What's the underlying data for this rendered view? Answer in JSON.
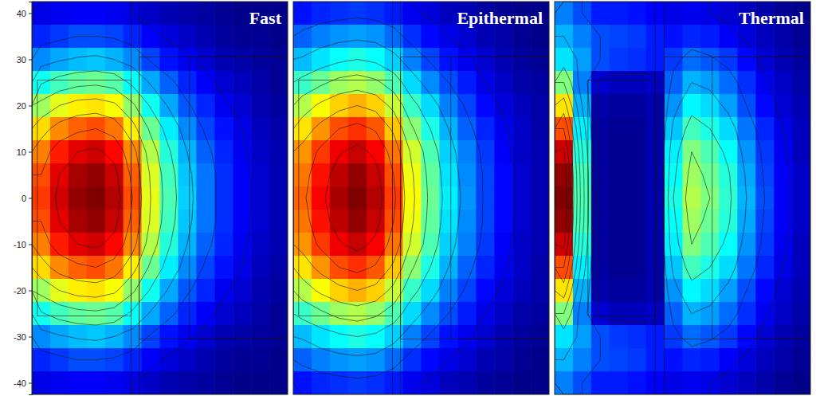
{
  "chart_data": [
    {
      "type": "heatmap",
      "title": "Fast",
      "color": "jet",
      "color_range": [
        0,
        1
      ],
      "x": [
        2,
        6,
        10,
        14,
        18,
        22,
        26,
        30,
        34,
        38,
        42,
        46,
        50,
        54
      ],
      "y": [
        40,
        35,
        30,
        25,
        20,
        15,
        10,
        5,
        0,
        -5,
        -10,
        -15,
        -20,
        -25,
        -30,
        -35,
        -40
      ],
      "xlim": [
        0,
        56
      ],
      "ylim": [
        -42.5,
        42.5
      ],
      "yticks": [
        40,
        30,
        20,
        10,
        0,
        -10,
        -20,
        -30,
        -40
      ],
      "tick_labels": "y",
      "contour_levels": [
        0.1,
        0.2,
        0.3,
        0.4,
        0.5,
        0.6,
        0.7,
        0.8,
        0.9
      ],
      "regions": [
        [
          1.2,
          21.7,
          -25.5,
          25.5
        ],
        [
          21.7,
          23.5,
          -42.5,
          42.5
        ],
        [
          23.5,
          56,
          -30.5,
          30.5
        ],
        [
          34.5,
          56,
          -30.5,
          30.5
        ]
      ],
      "values": [
        [
          0.1,
          0.11,
          0.12,
          0.12,
          0.11,
          0.1,
          0.07,
          0.05,
          0.04,
          0.03,
          0.02,
          0.01,
          0.01,
          0.01
        ],
        [
          0.16,
          0.18,
          0.2,
          0.2,
          0.19,
          0.16,
          0.12,
          0.09,
          0.07,
          0.05,
          0.03,
          0.02,
          0.02,
          0.01
        ],
        [
          0.26,
          0.29,
          0.31,
          0.32,
          0.3,
          0.26,
          0.19,
          0.14,
          0.11,
          0.08,
          0.05,
          0.04,
          0.03,
          0.02
        ],
        [
          0.39,
          0.44,
          0.47,
          0.48,
          0.46,
          0.38,
          0.29,
          0.22,
          0.16,
          0.12,
          0.08,
          0.06,
          0.04,
          0.02
        ],
        [
          0.53,
          0.6,
          0.64,
          0.65,
          0.62,
          0.52,
          0.39,
          0.29,
          0.21,
          0.16,
          0.11,
          0.08,
          0.05,
          0.03
        ],
        [
          0.66,
          0.74,
          0.78,
          0.8,
          0.76,
          0.64,
          0.48,
          0.36,
          0.26,
          0.19,
          0.14,
          0.1,
          0.06,
          0.04
        ],
        [
          0.75,
          0.85,
          0.9,
          0.92,
          0.87,
          0.74,
          0.55,
          0.41,
          0.3,
          0.22,
          0.16,
          0.11,
          0.07,
          0.05
        ],
        [
          0.8,
          0.9,
          0.96,
          0.98,
          0.93,
          0.78,
          0.59,
          0.44,
          0.32,
          0.24,
          0.17,
          0.12,
          0.08,
          0.05
        ],
        [
          0.82,
          0.92,
          0.98,
          1.0,
          0.95,
          0.8,
          0.6,
          0.45,
          0.33,
          0.24,
          0.17,
          0.12,
          0.08,
          0.05
        ],
        [
          0.8,
          0.9,
          0.96,
          0.98,
          0.93,
          0.78,
          0.59,
          0.44,
          0.32,
          0.24,
          0.17,
          0.12,
          0.08,
          0.05
        ],
        [
          0.75,
          0.85,
          0.9,
          0.92,
          0.87,
          0.74,
          0.55,
          0.41,
          0.3,
          0.22,
          0.16,
          0.11,
          0.07,
          0.05
        ],
        [
          0.66,
          0.74,
          0.78,
          0.8,
          0.76,
          0.64,
          0.48,
          0.36,
          0.26,
          0.19,
          0.14,
          0.1,
          0.06,
          0.04
        ],
        [
          0.53,
          0.6,
          0.64,
          0.65,
          0.62,
          0.52,
          0.39,
          0.29,
          0.21,
          0.16,
          0.11,
          0.08,
          0.05,
          0.03
        ],
        [
          0.39,
          0.44,
          0.47,
          0.48,
          0.46,
          0.38,
          0.29,
          0.22,
          0.16,
          0.12,
          0.08,
          0.06,
          0.04,
          0.02
        ],
        [
          0.26,
          0.29,
          0.31,
          0.32,
          0.3,
          0.26,
          0.19,
          0.14,
          0.11,
          0.08,
          0.05,
          0.04,
          0.03,
          0.02
        ],
        [
          0.16,
          0.18,
          0.2,
          0.2,
          0.19,
          0.16,
          0.12,
          0.09,
          0.07,
          0.05,
          0.03,
          0.02,
          0.02,
          0.01
        ],
        [
          0.1,
          0.11,
          0.12,
          0.12,
          0.11,
          0.1,
          0.07,
          0.05,
          0.04,
          0.03,
          0.02,
          0.01,
          0.01,
          0.01
        ]
      ]
    },
    {
      "type": "heatmap",
      "title": "Epithermal",
      "color": "jet",
      "color_range": [
        0,
        1
      ],
      "x": [
        2,
        6,
        10,
        14,
        18,
        22,
        26,
        30,
        34,
        38,
        42,
        46,
        50,
        54
      ],
      "y": [
        40,
        35,
        30,
        25,
        20,
        15,
        10,
        5,
        0,
        -5,
        -10,
        -15,
        -20,
        -25,
        -30,
        -35,
        -40
      ],
      "xlim": [
        0,
        56
      ],
      "ylim": [
        -42.5,
        42.5
      ],
      "tick_labels": false,
      "contour_levels": [
        0.1,
        0.2,
        0.3,
        0.4,
        0.5,
        0.6,
        0.7,
        0.8,
        0.9
      ],
      "regions": [
        [
          1.2,
          21.7,
          -25.5,
          25.5
        ],
        [
          21.7,
          23.5,
          -42.5,
          42.5
        ],
        [
          23.5,
          56,
          -30.5,
          30.5
        ],
        [
          34.5,
          56,
          -30.5,
          30.5
        ]
      ],
      "values": [
        [
          0.14,
          0.16,
          0.17,
          0.18,
          0.17,
          0.15,
          0.11,
          0.09,
          0.06,
          0.05,
          0.03,
          0.02,
          0.01,
          0.01
        ],
        [
          0.22,
          0.25,
          0.27,
          0.28,
          0.27,
          0.23,
          0.17,
          0.13,
          0.1,
          0.08,
          0.05,
          0.04,
          0.02,
          0.01
        ],
        [
          0.31,
          0.35,
          0.38,
          0.4,
          0.38,
          0.33,
          0.25,
          0.19,
          0.14,
          0.11,
          0.08,
          0.05,
          0.03,
          0.02
        ],
        [
          0.43,
          0.48,
          0.53,
          0.55,
          0.52,
          0.45,
          0.34,
          0.26,
          0.2,
          0.15,
          0.1,
          0.07,
          0.04,
          0.03
        ],
        [
          0.55,
          0.62,
          0.67,
          0.7,
          0.67,
          0.57,
          0.43,
          0.34,
          0.25,
          0.19,
          0.13,
          0.09,
          0.06,
          0.04
        ],
        [
          0.65,
          0.73,
          0.8,
          0.83,
          0.79,
          0.68,
          0.51,
          0.4,
          0.3,
          0.22,
          0.16,
          0.11,
          0.07,
          0.04
        ],
        [
          0.73,
          0.82,
          0.89,
          0.93,
          0.88,
          0.76,
          0.58,
          0.45,
          0.33,
          0.25,
          0.18,
          0.12,
          0.07,
          0.05
        ],
        [
          0.76,
          0.86,
          0.94,
          0.98,
          0.93,
          0.8,
          0.61,
          0.47,
          0.35,
          0.26,
          0.19,
          0.13,
          0.08,
          0.05
        ],
        [
          0.78,
          0.88,
          0.96,
          1.0,
          0.95,
          0.82,
          0.62,
          0.48,
          0.36,
          0.27,
          0.19,
          0.13,
          0.08,
          0.05
        ],
        [
          0.76,
          0.86,
          0.94,
          0.98,
          0.93,
          0.8,
          0.61,
          0.47,
          0.35,
          0.26,
          0.19,
          0.13,
          0.08,
          0.05
        ],
        [
          0.73,
          0.82,
          0.89,
          0.93,
          0.88,
          0.76,
          0.58,
          0.45,
          0.33,
          0.25,
          0.18,
          0.12,
          0.07,
          0.05
        ],
        [
          0.65,
          0.73,
          0.8,
          0.83,
          0.79,
          0.68,
          0.51,
          0.4,
          0.3,
          0.22,
          0.16,
          0.11,
          0.07,
          0.04
        ],
        [
          0.55,
          0.62,
          0.67,
          0.7,
          0.67,
          0.57,
          0.43,
          0.34,
          0.25,
          0.19,
          0.13,
          0.09,
          0.06,
          0.04
        ],
        [
          0.43,
          0.48,
          0.53,
          0.55,
          0.52,
          0.45,
          0.34,
          0.26,
          0.2,
          0.15,
          0.1,
          0.07,
          0.04,
          0.03
        ],
        [
          0.31,
          0.35,
          0.38,
          0.4,
          0.38,
          0.33,
          0.25,
          0.19,
          0.14,
          0.11,
          0.08,
          0.05,
          0.03,
          0.02
        ],
        [
          0.22,
          0.25,
          0.27,
          0.28,
          0.27,
          0.23,
          0.17,
          0.13,
          0.1,
          0.08,
          0.05,
          0.04,
          0.02,
          0.01
        ],
        [
          0.14,
          0.16,
          0.17,
          0.18,
          0.17,
          0.15,
          0.11,
          0.09,
          0.06,
          0.05,
          0.03,
          0.02,
          0.01,
          0.01
        ]
      ]
    },
    {
      "type": "heatmap",
      "title": "Thermal",
      "color": "jet",
      "color_range": [
        0,
        1
      ],
      "x": [
        2,
        6,
        10,
        14,
        18,
        22,
        26,
        30,
        34,
        38,
        42,
        46,
        50,
        54
      ],
      "y": [
        40,
        35,
        30,
        25,
        20,
        15,
        10,
        5,
        0,
        -5,
        -10,
        -15,
        -20,
        -25,
        -30,
        -35,
        -40
      ],
      "xlim": [
        0,
        56
      ],
      "ylim": [
        -42.5,
        42.5
      ],
      "tick_labels": false,
      "contour_levels": [
        0.1,
        0.2,
        0.3,
        0.4,
        0.5,
        0.6,
        0.7,
        0.8,
        0.9
      ],
      "regions": [
        [
          7.3,
          22,
          -25.5,
          25.5
        ],
        [
          22,
          24,
          -42.5,
          42.5
        ],
        [
          24,
          56,
          -30.5,
          30.5
        ],
        [
          34.5,
          56,
          -30.5,
          30.5
        ]
      ],
      "values": [
        [
          0.25,
          0.2,
          0.15,
          0.15,
          0.14,
          0.12,
          0.1,
          0.11,
          0.1,
          0.08,
          0.06,
          0.04,
          0.02,
          0.01
        ],
        [
          0.3,
          0.25,
          0.2,
          0.19,
          0.18,
          0.15,
          0.14,
          0.16,
          0.15,
          0.12,
          0.09,
          0.06,
          0.04,
          0.02
        ],
        [
          0.35,
          0.28,
          0.2,
          0.18,
          0.17,
          0.15,
          0.18,
          0.23,
          0.21,
          0.18,
          0.13,
          0.08,
          0.05,
          0.03
        ],
        [
          0.5,
          0.25,
          0.08,
          0.06,
          0.06,
          0.07,
          0.22,
          0.3,
          0.28,
          0.23,
          0.17,
          0.11,
          0.07,
          0.04
        ],
        [
          0.65,
          0.3,
          0.04,
          0.03,
          0.03,
          0.05,
          0.27,
          0.37,
          0.34,
          0.28,
          0.2,
          0.13,
          0.08,
          0.05
        ],
        [
          0.8,
          0.36,
          0.03,
          0.02,
          0.02,
          0.05,
          0.32,
          0.44,
          0.4,
          0.34,
          0.24,
          0.16,
          0.1,
          0.06
        ],
        [
          0.92,
          0.41,
          0.03,
          0.02,
          0.02,
          0.05,
          0.36,
          0.5,
          0.45,
          0.38,
          0.27,
          0.18,
          0.11,
          0.06
        ],
        [
          0.98,
          0.44,
          0.03,
          0.02,
          0.02,
          0.05,
          0.38,
          0.53,
          0.48,
          0.41,
          0.29,
          0.19,
          0.12,
          0.07
        ],
        [
          1.0,
          0.45,
          0.03,
          0.02,
          0.02,
          0.05,
          0.4,
          0.55,
          0.5,
          0.42,
          0.3,
          0.2,
          0.12,
          0.07
        ],
        [
          0.98,
          0.44,
          0.03,
          0.02,
          0.02,
          0.05,
          0.38,
          0.53,
          0.48,
          0.41,
          0.29,
          0.19,
          0.12,
          0.07
        ],
        [
          0.92,
          0.41,
          0.03,
          0.02,
          0.02,
          0.05,
          0.36,
          0.5,
          0.45,
          0.38,
          0.27,
          0.18,
          0.11,
          0.06
        ],
        [
          0.8,
          0.36,
          0.03,
          0.02,
          0.02,
          0.05,
          0.32,
          0.44,
          0.4,
          0.34,
          0.24,
          0.16,
          0.1,
          0.06
        ],
        [
          0.65,
          0.3,
          0.04,
          0.03,
          0.03,
          0.05,
          0.27,
          0.37,
          0.34,
          0.28,
          0.2,
          0.13,
          0.08,
          0.05
        ],
        [
          0.5,
          0.25,
          0.08,
          0.06,
          0.06,
          0.07,
          0.22,
          0.3,
          0.28,
          0.23,
          0.17,
          0.11,
          0.07,
          0.04
        ],
        [
          0.35,
          0.28,
          0.2,
          0.18,
          0.17,
          0.15,
          0.18,
          0.23,
          0.21,
          0.18,
          0.13,
          0.08,
          0.05,
          0.03
        ],
        [
          0.3,
          0.25,
          0.2,
          0.19,
          0.18,
          0.15,
          0.14,
          0.16,
          0.15,
          0.12,
          0.09,
          0.06,
          0.04,
          0.02
        ],
        [
          0.25,
          0.2,
          0.15,
          0.15,
          0.14,
          0.12,
          0.1,
          0.11,
          0.1,
          0.08,
          0.06,
          0.04,
          0.02,
          0.01
        ]
      ]
    }
  ]
}
